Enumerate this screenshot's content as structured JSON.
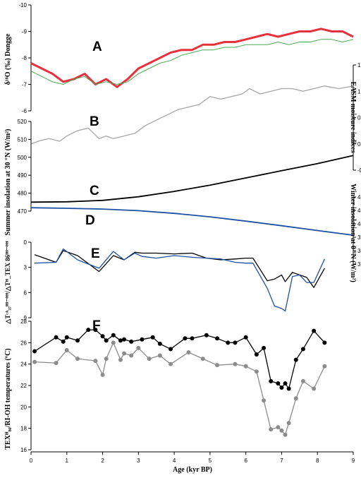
{
  "figure": {
    "panel_labels": [
      "A",
      "B",
      "C",
      "D",
      "E",
      "F"
    ],
    "x_axis_label": "Age (kyr BP)"
  },
  "chart_data": [
    {
      "panel": "A",
      "type": "line",
      "ylabel": "δ¹⁸O (‰) Dongge",
      "ylim": [
        -10,
        -6
      ],
      "y_inverted": true,
      "yticks": [
        "-10",
        "-9",
        "-8",
        "-7",
        "-6"
      ],
      "xlim": [
        0,
        9
      ],
      "series": [
        {
          "color": "#e8303e",
          "x": [
            0,
            0.3,
            0.6,
            0.9,
            1.2,
            1.5,
            1.8,
            2.1,
            2.4,
            2.7,
            3.0,
            3.3,
            3.6,
            3.9,
            4.2,
            4.5,
            4.8,
            5.1,
            5.4,
            5.7,
            6.0,
            6.3,
            6.6,
            6.9,
            7.2,
            7.5,
            7.8,
            8.1,
            8.4,
            8.7,
            9.0
          ],
          "y": [
            -7.8,
            -7.6,
            -7.4,
            -7.1,
            -7.2,
            -7.4,
            -7.0,
            -7.2,
            -6.9,
            -7.2,
            -7.6,
            -7.8,
            -8.0,
            -8.2,
            -8.3,
            -8.3,
            -8.5,
            -8.5,
            -8.6,
            -8.6,
            -8.7,
            -8.8,
            -8.9,
            -8.8,
            -8.9,
            -9.0,
            -9.0,
            -9.1,
            -9.0,
            -9.0,
            -8.8
          ]
        },
        {
          "color": "#49a84f",
          "x": [
            0,
            0.3,
            0.6,
            0.9,
            1.2,
            1.5,
            1.8,
            2.1,
            2.4,
            2.7,
            3.0,
            3.3,
            3.6,
            3.9,
            4.2,
            4.5,
            4.8,
            5.1,
            5.4,
            5.7,
            6.0,
            6.3,
            6.6,
            6.9,
            7.2,
            7.5,
            7.8,
            8.1,
            8.4,
            8.7,
            9.0
          ],
          "y": [
            -7.5,
            -7.3,
            -7.1,
            -7.0,
            -7.2,
            -7.3,
            -7.0,
            -7.1,
            -7.0,
            -7.1,
            -7.4,
            -7.6,
            -7.8,
            -7.9,
            -8.1,
            -8.2,
            -8.3,
            -8.3,
            -8.4,
            -8.4,
            -8.5,
            -8.5,
            -8.5,
            -8.6,
            -8.5,
            -8.6,
            -8.6,
            -8.7,
            -8.7,
            -8.6,
            -8.7
          ]
        }
      ]
    },
    {
      "panel": "B",
      "type": "line",
      "ylabel": "EASM moisture indices",
      "ylim": [
        -0.5,
        1.5
      ],
      "yticks": [
        "-0.5",
        "0",
        "0.5",
        "1",
        "1.5"
      ],
      "xlim": [
        0,
        9
      ],
      "series": [
        {
          "color": "#a6a6a6",
          "x": [
            0,
            0.2,
            0.5,
            0.8,
            1.0,
            1.3,
            1.6,
            1.9,
            2.1,
            2.3,
            2.6,
            2.9,
            3.2,
            3.5,
            3.8,
            4.1,
            4.4,
            4.7,
            5.0,
            5.3,
            5.6,
            5.9,
            6.1,
            6.4,
            6.7,
            7.0,
            7.3,
            7.6,
            7.9,
            8.2,
            8.6,
            9.0
          ],
          "y": [
            0.0,
            0.05,
            0.1,
            0.05,
            0.15,
            0.25,
            0.3,
            0.1,
            0.15,
            0.1,
            0.15,
            0.2,
            0.35,
            0.45,
            0.55,
            0.65,
            0.7,
            0.75,
            0.9,
            0.85,
            0.9,
            0.95,
            1.05,
            0.95,
            1.0,
            1.05,
            1.05,
            1.0,
            1.05,
            1.1,
            1.05,
            1.1
          ]
        }
      ]
    },
    {
      "panel": "C",
      "type": "line",
      "ylabel": "Summer insolation at 30 °N (W/m²)",
      "ylim": [
        470,
        520
      ],
      "yticks": [
        "470",
        "480",
        "490",
        "500",
        "510",
        "520"
      ],
      "xlim": [
        0,
        9
      ],
      "series": [
        {
          "color": "#000000",
          "x": [
            0,
            1,
            2,
            3,
            4,
            5,
            6,
            7,
            8,
            9
          ],
          "y": [
            475.0,
            475.2,
            476.0,
            478.0,
            481.0,
            484.5,
            488.5,
            492.5,
            496.5,
            501.0
          ]
        }
      ]
    },
    {
      "panel": "D",
      "type": "line",
      "ylabel": "Winter insolation at 0 °N (W/m²)",
      "ylim": [
        370,
        420
      ],
      "yticks": [
        "370",
        "380",
        "390",
        "400",
        "410",
        "420"
      ],
      "xlim": [
        0,
        9
      ],
      "series": [
        {
          "color": "#1f4fa3",
          "x": [
            0,
            1,
            2,
            3,
            4,
            5,
            6,
            7,
            8,
            9
          ],
          "y": [
            412.0,
            411.6,
            411.0,
            409.8,
            407.8,
            405.2,
            402.0,
            398.6,
            395.0,
            391.5
          ]
        }
      ]
    },
    {
      "panel": "E",
      "type": "line",
      "ylabel": "△Tᶜᴬ₃₇ᴵᴵᴵ⁻ᴼᴴ/△Tᴴ_TEX 86ᴵᴵᴵ⁻ᴼᴴ",
      "ylim": [
        0,
        9
      ],
      "y_inverted": true,
      "yticks": [
        "0",
        "3",
        "6",
        "9"
      ],
      "xlim": [
        0,
        9
      ],
      "series": [
        {
          "color": "#000000",
          "x": [
            0.1,
            0.7,
            0.9,
            1.3,
            1.9,
            2.3,
            2.6,
            2.9,
            3.1,
            3.5,
            4.0,
            4.5,
            4.9,
            5.3,
            5.7,
            6.0,
            6.2,
            6.6,
            6.8,
            7.0,
            7.1,
            7.3,
            7.5,
            7.7,
            7.9,
            8.2
          ],
          "y": [
            1.5,
            2.4,
            1.0,
            1.6,
            3.5,
            1.6,
            2.1,
            1.2,
            1.3,
            1.3,
            1.4,
            1.3,
            1.9,
            2.1,
            2.0,
            1.9,
            1.9,
            4.6,
            4.4,
            3.9,
            4.7,
            3.6,
            3.9,
            4.2,
            5.4,
            3.1
          ]
        },
        {
          "color": "#1f4fa3",
          "x": [
            0.1,
            0.7,
            0.9,
            1.3,
            1.9,
            2.3,
            2.6,
            2.9,
            3.1,
            3.5,
            4.0,
            4.5,
            4.9,
            5.3,
            5.7,
            6.0,
            6.2,
            6.6,
            6.8,
            7.0,
            7.1,
            7.3,
            7.5,
            7.7,
            7.9,
            8.2
          ],
          "y": [
            2.5,
            2.4,
            0.8,
            2.1,
            3.1,
            1.1,
            2.1,
            1.3,
            1.7,
            1.9,
            1.6,
            1.8,
            1.9,
            2.0,
            2.4,
            2.5,
            2.5,
            5.5,
            7.6,
            7.9,
            8.2,
            4.1,
            3.9,
            4.8,
            4.8,
            2.0
          ]
        }
      ]
    },
    {
      "panel": "F",
      "type": "scatter",
      "ylabel": "TEXᴴ₈₆/RI-OH temperatures (ºC)",
      "ylim": [
        16,
        28
      ],
      "yticks": [
        "16",
        "18",
        "20",
        "22",
        "24",
        "26",
        "28"
      ],
      "xlim": [
        0,
        9
      ],
      "xticks": [
        "0",
        "1",
        "2",
        "3",
        "4",
        "5",
        "6",
        "7",
        "8",
        "9"
      ],
      "series": [
        {
          "color": "#000000",
          "x": [
            0.1,
            0.7,
            0.9,
            1.0,
            1.3,
            1.6,
            1.8,
            2.0,
            2.1,
            2.3,
            2.5,
            2.6,
            2.8,
            3.1,
            3.4,
            3.6,
            3.9,
            4.3,
            4.5,
            4.9,
            5.2,
            5.5,
            5.7,
            6.0,
            6.3,
            6.5,
            6.7,
            6.9,
            7.0,
            7.1,
            7.2,
            7.4,
            7.6,
            7.9,
            8.2
          ],
          "y": [
            25.2,
            26.5,
            26.1,
            26.5,
            26.2,
            27.2,
            27.2,
            26.6,
            26.2,
            26.7,
            26.2,
            26.3,
            26.1,
            26.3,
            26.5,
            25.9,
            25.4,
            26.4,
            26.4,
            26.7,
            26.4,
            26.0,
            26.0,
            26.5,
            24.9,
            25.5,
            22.4,
            22.2,
            21.8,
            22.2,
            21.7,
            24.4,
            25.4,
            27.1,
            26.0
          ]
        },
        {
          "color": "#8c8c8c",
          "x": [
            0.1,
            0.7,
            1.0,
            1.3,
            1.8,
            2.0,
            2.1,
            2.3,
            2.5,
            2.6,
            2.8,
            3.0,
            3.3,
            3.6,
            3.9,
            4.4,
            4.8,
            5.2,
            5.7,
            6.0,
            6.3,
            6.5,
            6.7,
            6.9,
            7.0,
            7.1,
            7.2,
            7.4,
            7.6,
            7.9,
            8.2
          ],
          "y": [
            24.2,
            24.1,
            25.3,
            24.5,
            24.3,
            23.0,
            24.5,
            26.0,
            24.4,
            25.0,
            24.8,
            25.5,
            24.5,
            24.8,
            24.0,
            25.1,
            24.5,
            23.9,
            24.0,
            23.8,
            23.3,
            20.6,
            17.9,
            18.1,
            17.8,
            17.4,
            18.5,
            20.8,
            22.4,
            21.7,
            23.8
          ]
        }
      ]
    }
  ]
}
